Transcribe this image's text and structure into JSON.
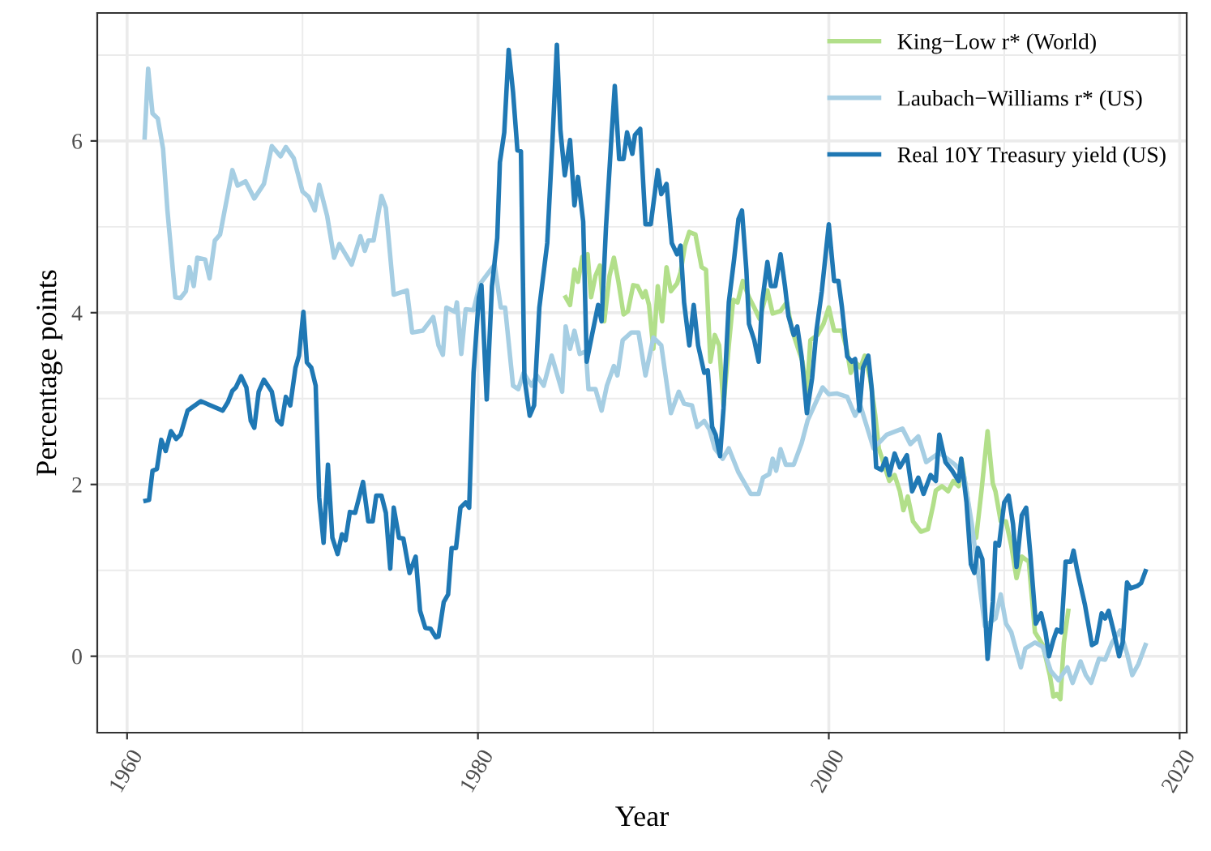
{
  "chart_data": {
    "type": "line",
    "xlabel": "Year",
    "ylabel": "Percentage points",
    "xlim": [
      1958.3,
      2020.4
    ],
    "ylim": [
      -0.89,
      7.49
    ],
    "xticks": [
      1960,
      1980,
      2000,
      2020
    ],
    "yticks": [
      0,
      2,
      4,
      6
    ],
    "grid": true,
    "legend": "top right",
    "line_style": "solid",
    "marker": "none",
    "series": [
      {
        "name": "King−Low r* (World)",
        "color": "#b2df8a",
        "x": [
          1985.0,
          1985.25,
          1985.5,
          1985.7,
          1985.95,
          1986.25,
          1986.45,
          1986.7,
          1986.95,
          1987.2,
          1987.5,
          1987.75,
          1988.0,
          1988.3,
          1988.55,
          1988.85,
          1989.1,
          1989.4,
          1989.55,
          1989.75,
          1990.0,
          1990.25,
          1990.5,
          1990.75,
          1991.0,
          1991.35,
          1991.55,
          1991.8,
          1992.05,
          1992.4,
          1992.75,
          1993.0,
          1993.25,
          1993.5,
          1993.75,
          1994.0,
          1994.3,
          1994.55,
          1994.8,
          1995.1,
          1995.45,
          1995.75,
          1996.05,
          1996.5,
          1996.8,
          1997.25,
          1997.6,
          1997.9,
          1998.3,
          1998.5,
          1998.75,
          1998.95,
          1999.35,
          1999.7,
          2000.0,
          2000.3,
          2000.75,
          2001.05,
          2001.25,
          2001.5,
          2001.8,
          2002.05,
          2002.35,
          2002.65,
          2002.85,
          2003.15,
          2003.45,
          2003.75,
          2004.05,
          2004.25,
          2004.5,
          2004.8,
          2005.25,
          2005.65,
          2005.95,
          2006.1,
          2006.45,
          2006.8,
          2007.1,
          2007.4,
          2007.55,
          2007.85,
          2008.15,
          2008.4,
          2008.7,
          2009.05,
          2009.35,
          2009.5,
          2009.8,
          2010.1,
          2010.4,
          2010.7,
          2011.0,
          2011.4,
          2011.75,
          2012.2,
          2012.6,
          2012.8,
          2013.0,
          2013.2,
          2013.4,
          2013.65
        ],
        "values": [
          4.18,
          4.09,
          4.5,
          4.36,
          4.65,
          4.68,
          4.18,
          4.43,
          4.55,
          3.9,
          4.43,
          4.64,
          4.37,
          3.98,
          4.02,
          4.32,
          4.31,
          4.18,
          4.25,
          4.09,
          3.58,
          4.31,
          3.9,
          4.53,
          4.25,
          4.34,
          4.47,
          4.78,
          4.94,
          4.91,
          4.53,
          4.5,
          3.43,
          3.74,
          3.62,
          2.92,
          3.62,
          4.15,
          4.12,
          4.37,
          4.18,
          4.06,
          3.93,
          4.26,
          3.99,
          4.02,
          4.12,
          3.8,
          3.55,
          3.43,
          3.05,
          3.68,
          3.74,
          3.87,
          4.06,
          3.79,
          3.79,
          3.55,
          3.3,
          3.43,
          3.36,
          3.5,
          3.24,
          2.8,
          2.42,
          2.23,
          2.04,
          2.11,
          1.92,
          1.7,
          1.86,
          1.57,
          1.45,
          1.48,
          1.76,
          1.93,
          1.98,
          1.92,
          2.04,
          1.98,
          2.3,
          1.92,
          1.45,
          1.38,
          1.92,
          2.62,
          2.01,
          1.92,
          1.57,
          1.57,
          1.29,
          0.91,
          1.16,
          1.1,
          0.28,
          0.13,
          -0.22,
          -0.47,
          -0.44,
          -0.5,
          0.16,
          0.53
        ]
      },
      {
        "name": "Laubach−Williams r* (US)",
        "color": "#a6cee3",
        "x": [
          1961.0,
          1961.2,
          1961.45,
          1961.75,
          1962.05,
          1962.3,
          1962.75,
          1963.05,
          1963.35,
          1963.55,
          1963.8,
          1964.0,
          1964.45,
          1964.7,
          1965.0,
          1965.3,
          1966.0,
          1966.3,
          1966.75,
          1967.25,
          1967.8,
          1968.25,
          1968.75,
          1969.05,
          1969.5,
          1970.0,
          1970.35,
          1970.7,
          1970.95,
          1971.4,
          1971.8,
          1972.1,
          1972.8,
          1973.3,
          1973.55,
          1973.75,
          1974.05,
          1974.5,
          1974.75,
          1975.2,
          1975.95,
          1976.25,
          1976.85,
          1977.45,
          1977.75,
          1978.0,
          1978.2,
          1978.7,
          1978.8,
          1979.05,
          1979.3,
          1979.75,
          1980.1,
          1980.95,
          1981.3,
          1981.55,
          1982.0,
          1982.3,
          1982.6,
          1983.05,
          1983.35,
          1983.75,
          1984.2,
          1984.8,
          1985.0,
          1985.25,
          1985.5,
          1985.8,
          1986.15,
          1986.3,
          1986.7,
          1987.05,
          1987.35,
          1987.75,
          1987.95,
          1988.25,
          1988.75,
          1989.15,
          1989.55,
          1990.0,
          1990.45,
          1991.0,
          1991.45,
          1991.75,
          1992.2,
          1992.5,
          1992.9,
          1993.2,
          1993.5,
          1993.95,
          1994.3,
          1994.85,
          1995.55,
          1996.0,
          1996.25,
          1996.6,
          1996.8,
          1997.0,
          1997.25,
          1997.55,
          1998.0,
          1998.45,
          1998.8,
          1999.65,
          2000.0,
          2000.45,
          2001.05,
          2001.5,
          2001.8,
          2002.55,
          2003.3,
          2004.2,
          2004.65,
          2005.1,
          2005.55,
          2006.3,
          2007.2,
          2007.7,
          2008.15,
          2008.7,
          2008.9,
          2009.5,
          2009.8,
          2010.1,
          2010.4,
          2010.95,
          2011.2,
          2011.75,
          2012.2,
          2012.65,
          2013.1,
          2013.6,
          2013.9,
          2014.35,
          2014.65,
          2014.95,
          2015.4,
          2015.75,
          2016.15,
          2016.6,
          2017.0,
          2017.3,
          2017.65,
          2018.05
        ],
        "values": [
          6.04,
          6.84,
          6.32,
          6.26,
          5.91,
          5.19,
          4.18,
          4.17,
          4.25,
          4.53,
          4.31,
          4.64,
          4.62,
          4.4,
          4.84,
          4.91,
          5.66,
          5.48,
          5.53,
          5.33,
          5.5,
          5.94,
          5.82,
          5.93,
          5.8,
          5.41,
          5.35,
          5.19,
          5.49,
          5.13,
          4.64,
          4.8,
          4.56,
          4.89,
          4.72,
          4.84,
          4.84,
          5.36,
          5.22,
          4.21,
          4.26,
          3.77,
          3.79,
          3.95,
          3.62,
          3.51,
          4.06,
          4.01,
          4.12,
          3.52,
          4.04,
          4.03,
          4.33,
          4.56,
          4.06,
          4.06,
          3.15,
          3.11,
          3.3,
          3.15,
          3.27,
          3.15,
          3.5,
          3.08,
          3.84,
          3.58,
          3.79,
          3.52,
          3.55,
          3.11,
          3.11,
          2.86,
          3.15,
          3.38,
          3.27,
          3.68,
          3.77,
          3.77,
          3.27,
          3.71,
          3.62,
          2.83,
          3.08,
          2.94,
          2.92,
          2.67,
          2.74,
          2.64,
          2.42,
          2.3,
          2.42,
          2.14,
          1.89,
          1.89,
          2.08,
          2.12,
          2.3,
          2.16,
          2.41,
          2.23,
          2.23,
          2.48,
          2.75,
          3.13,
          3.05,
          3.06,
          3.02,
          2.8,
          2.92,
          2.42,
          2.58,
          2.65,
          2.47,
          2.56,
          2.26,
          2.37,
          2.23,
          2.11,
          1.54,
          0.66,
          0.35,
          0.44,
          0.72,
          0.38,
          0.28,
          -0.13,
          0.09,
          0.16,
          0.11,
          -0.17,
          -0.28,
          -0.13,
          -0.31,
          -0.06,
          -0.22,
          -0.31,
          -0.03,
          -0.04,
          0.16,
          0.3,
          0.03,
          -0.22,
          -0.09,
          0.13
        ]
      },
      {
        "name": "Real 10Y Treasury yield (US)",
        "color": "#1f78b4",
        "x": [
          1961.05,
          1961.25,
          1961.45,
          1961.7,
          1961.95,
          1962.2,
          1962.5,
          1962.8,
          1963.05,
          1963.45,
          1964.2,
          1965.45,
          1965.75,
          1966.0,
          1966.2,
          1966.5,
          1966.8,
          1967.05,
          1967.25,
          1967.5,
          1967.8,
          1968.25,
          1968.55,
          1968.8,
          1969.05,
          1969.3,
          1969.6,
          1969.8,
          1970.05,
          1970.25,
          1970.5,
          1970.75,
          1970.95,
          1971.2,
          1971.45,
          1971.7,
          1972.0,
          1972.25,
          1972.45,
          1972.7,
          1973.0,
          1973.45,
          1973.75,
          1974.0,
          1974.2,
          1974.5,
          1974.75,
          1975.0,
          1975.2,
          1975.5,
          1975.75,
          1976.1,
          1976.45,
          1976.7,
          1977.0,
          1977.3,
          1977.6,
          1977.75,
          1978.05,
          1978.3,
          1978.5,
          1978.75,
          1979.0,
          1979.3,
          1979.5,
          1979.75,
          1980.05,
          1980.2,
          1980.5,
          1980.8,
          1981.1,
          1981.25,
          1981.5,
          1981.75,
          1982.0,
          1982.25,
          1982.45,
          1982.65,
          1982.95,
          1983.2,
          1983.5,
          1983.95,
          1984.25,
          1984.5,
          1984.7,
          1984.95,
          1985.25,
          1985.5,
          1985.7,
          1986.0,
          1986.2,
          1986.5,
          1986.85,
          1987.05,
          1987.3,
          1987.6,
          1987.8,
          1988.05,
          1988.3,
          1988.5,
          1988.8,
          1988.95,
          1989.25,
          1989.55,
          1989.85,
          1990.25,
          1990.45,
          1990.75,
          1991.05,
          1991.35,
          1991.55,
          1991.75,
          1992.05,
          1992.3,
          1992.55,
          1992.9,
          1993.1,
          1993.35,
          1993.55,
          1993.8,
          1994.0,
          1994.3,
          1994.6,
          1994.85,
          1995.05,
          1995.3,
          1995.45,
          1995.75,
          1996.0,
          1996.2,
          1996.5,
          1996.7,
          1996.95,
          1997.25,
          1997.5,
          1997.7,
          1998.0,
          1998.2,
          1998.45,
          1998.75,
          1999.05,
          1999.3,
          1999.6,
          2000.0,
          2000.3,
          2000.55,
          2000.75,
          2001.05,
          2001.3,
          2001.5,
          2001.75,
          2001.95,
          2002.25,
          2002.45,
          2002.7,
          2003.0,
          2003.25,
          2003.45,
          2003.75,
          2004.05,
          2004.45,
          2004.75,
          2005.1,
          2005.4,
          2005.8,
          2006.1,
          2006.3,
          2006.65,
          2007.0,
          2007.4,
          2007.55,
          2007.85,
          2008.1,
          2008.3,
          2008.5,
          2008.75,
          2009.05,
          2009.35,
          2009.5,
          2009.7,
          2010.0,
          2010.25,
          2010.5,
          2010.7,
          2011.0,
          2011.25,
          2011.5,
          2011.8,
          2012.1,
          2012.35,
          2012.55,
          2012.8,
          2013.0,
          2013.25,
          2013.5,
          2013.8,
          2013.95,
          2014.15,
          2014.6,
          2015.0,
          2015.25,
          2015.55,
          2015.75,
          2015.95,
          2016.25,
          2016.55,
          2016.75,
          2017.0,
          2017.2,
          2017.6,
          2017.8,
          2018.05
        ],
        "values": [
          1.81,
          1.82,
          2.16,
          2.18,
          2.52,
          2.39,
          2.62,
          2.53,
          2.58,
          2.86,
          2.97,
          2.86,
          2.96,
          3.09,
          3.13,
          3.26,
          3.13,
          2.74,
          2.66,
          3.08,
          3.22,
          3.08,
          2.75,
          2.7,
          3.02,
          2.92,
          3.36,
          3.5,
          4.01,
          3.42,
          3.36,
          3.15,
          1.85,
          1.32,
          2.23,
          1.38,
          1.19,
          1.42,
          1.35,
          1.68,
          1.67,
          2.03,
          1.57,
          1.57,
          1.87,
          1.87,
          1.67,
          1.02,
          1.73,
          1.38,
          1.37,
          0.97,
          1.16,
          0.53,
          0.33,
          0.32,
          0.22,
          0.23,
          0.63,
          0.72,
          1.26,
          1.26,
          1.73,
          1.79,
          1.73,
          3.3,
          4.18,
          4.32,
          2.99,
          4.31,
          4.87,
          5.75,
          6.1,
          7.06,
          6.57,
          5.89,
          5.88,
          3.24,
          2.8,
          2.92,
          4.06,
          4.81,
          6.01,
          7.12,
          6.13,
          5.6,
          6.01,
          5.25,
          5.58,
          5.06,
          3.43,
          3.74,
          4.09,
          3.9,
          5.0,
          6.01,
          6.64,
          5.79,
          5.79,
          6.1,
          5.85,
          6.07,
          6.14,
          5.03,
          5.03,
          5.66,
          5.38,
          5.5,
          4.81,
          4.68,
          4.78,
          4.12,
          3.62,
          4.09,
          3.62,
          3.3,
          3.33,
          2.67,
          2.58,
          2.33,
          2.89,
          4.12,
          4.62,
          5.09,
          5.19,
          4.5,
          3.87,
          3.68,
          3.43,
          4.12,
          4.59,
          4.31,
          4.31,
          4.68,
          4.31,
          3.96,
          3.74,
          3.84,
          3.49,
          2.83,
          3.24,
          3.8,
          4.25,
          5.03,
          4.37,
          4.37,
          4.06,
          3.49,
          3.43,
          3.46,
          2.86,
          3.36,
          3.5,
          3.11,
          2.2,
          2.17,
          2.3,
          2.11,
          2.36,
          2.2,
          2.34,
          1.92,
          2.08,
          1.89,
          2.11,
          2.04,
          2.58,
          2.26,
          2.17,
          2.04,
          2.3,
          1.79,
          1.07,
          0.97,
          1.26,
          1.13,
          -0.03,
          0.63,
          1.32,
          1.29,
          1.79,
          1.87,
          1.54,
          1.04,
          1.64,
          1.73,
          1.16,
          0.38,
          0.5,
          0.28,
          0.0,
          0.19,
          0.31,
          0.28,
          1.1,
          1.1,
          1.23,
          1.01,
          0.6,
          0.13,
          0.16,
          0.5,
          0.44,
          0.53,
          0.28,
          0.0,
          0.16,
          0.86,
          0.79,
          0.82,
          0.85,
          0.99
        ]
      }
    ]
  }
}
